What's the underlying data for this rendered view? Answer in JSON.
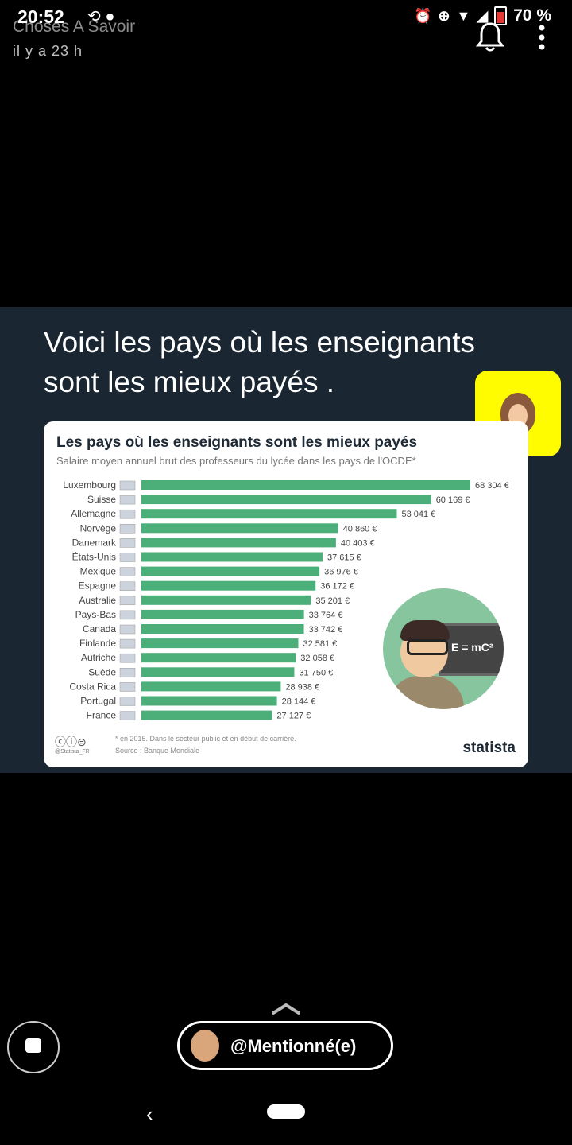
{
  "status_bar": {
    "time": "20:52",
    "battery": "70 %"
  },
  "story": {
    "title": "Choses A Savoir",
    "time_ago": "il y a 23 h"
  },
  "image": {
    "headline": "Voici les pays où les enseignants sont les mieux payés .",
    "infographic": {
      "title": "Les pays où les enseignants sont les mieux payés",
      "subtitle": "Salaire moyen annuel brut des professeurs du lycée dans les pays de l'OCDE*",
      "note_line1": "* en 2015. Dans le secteur public et en début de carrière.",
      "note_line2": "Source : Banque Mondiale",
      "brand": "statista",
      "cc_handle": "@Statista_FR",
      "board_text": "E = mC²"
    }
  },
  "chart_data": {
    "type": "bar",
    "orientation": "horizontal",
    "categories": [
      "Luxembourg",
      "Suisse",
      "Allemagne",
      "Norvège",
      "Danemark",
      "États-Unis",
      "Mexique",
      "Espagne",
      "Australie",
      "Pays-Bas",
      "Canada",
      "Finlande",
      "Autriche",
      "Suède",
      "Costa Rica",
      "Portugal",
      "France"
    ],
    "values": [
      68304,
      60169,
      53041,
      40860,
      40403,
      37615,
      36976,
      36172,
      35201,
      33764,
      33742,
      32581,
      32058,
      31750,
      28938,
      28144,
      27127
    ],
    "value_labels": [
      "68 304 €",
      "60 169 €",
      "53 041 €",
      "40 860 €",
      "40 403 €",
      "37 615 €",
      "36 976 €",
      "36 172 €",
      "35 201 €",
      "33 764 €",
      "33 742 €",
      "32 581 €",
      "32 058 €",
      "31 750 €",
      "28 938 €",
      "28 144 €",
      "27 127 €"
    ],
    "title": "Les pays où les enseignants sont les mieux payés",
    "subtitle": "Salaire moyen annuel brut des professeurs du lycée dans les pays de l'OCDE*",
    "bar_color": "#4caf7a",
    "grid": false
  },
  "bottom": {
    "mention_label": "@Mentionné(e)"
  },
  "colors": {
    "bar": "#4caf7a",
    "panel_bg": "#1a2732",
    "snapcode": "#fffc00"
  }
}
